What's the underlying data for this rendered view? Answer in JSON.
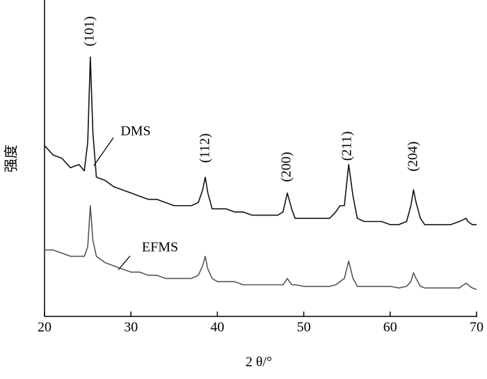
{
  "chart_data": {
    "type": "line",
    "xlabel": "2 θ/°",
    "ylabel": "强度",
    "x": [
      20,
      21,
      22,
      23,
      24,
      24.6,
      25,
      25.3,
      25.6,
      26,
      27,
      28,
      29,
      30,
      31,
      32,
      33,
      34,
      35,
      36,
      37,
      37.8,
      38.3,
      38.6,
      38.9,
      39.4,
      40,
      41,
      42,
      43,
      44,
      45,
      46,
      47,
      47.6,
      48.1,
      48.6,
      49,
      50,
      51,
      52,
      53,
      53.7,
      54.2,
      54.7,
      55.2,
      55.7,
      56.2,
      57,
      58,
      59,
      60,
      61,
      61.9,
      62.4,
      62.7,
      63.0,
      63.5,
      64,
      65,
      66,
      67,
      68,
      68.8,
      69,
      69.5,
      70
    ],
    "series": [
      {
        "name": "DMS",
        "color": "#111111",
        "values": [
          54,
          51,
          50,
          47,
          48,
          46,
          55,
          82,
          58,
          44,
          43,
          41,
          40,
          39,
          38,
          37,
          37,
          36,
          35,
          35,
          35,
          36,
          40,
          44,
          39,
          34,
          34,
          34,
          33,
          33,
          32,
          32,
          32,
          32,
          33,
          39,
          34,
          31,
          31,
          31,
          31,
          31,
          33,
          35,
          35,
          48,
          38,
          31,
          30,
          30,
          30,
          29,
          29,
          30,
          35,
          40,
          36,
          31,
          29,
          29,
          29,
          29,
          30,
          31,
          30,
          29,
          29
        ]
      },
      {
        "name": "EFMS",
        "color": "#555555",
        "values": [
          21,
          21,
          20,
          19,
          19,
          19,
          22,
          35,
          24,
          19,
          17,
          16,
          15,
          14,
          14,
          13,
          13,
          12,
          12,
          12,
          12,
          13,
          16,
          19,
          15,
          12,
          11,
          11,
          11,
          10,
          10,
          10,
          10,
          10,
          10,
          12,
          10,
          10,
          9.5,
          9.5,
          9.5,
          9.5,
          10,
          11,
          12,
          17.5,
          12,
          9.5,
          9.5,
          9.5,
          9.5,
          9.5,
          9,
          9.5,
          11,
          13.8,
          12,
          9.5,
          9,
          9,
          9,
          9,
          9,
          10.5,
          10,
          9,
          8.5
        ]
      }
    ],
    "annotations": [
      "(101)",
      "(112)",
      "(200)",
      "(211)",
      "(204)"
    ],
    "xlim": [
      20,
      70
    ],
    "xticks": [
      20,
      30,
      40,
      50,
      60,
      70
    ],
    "ylim": [
      0,
      100
    ]
  }
}
